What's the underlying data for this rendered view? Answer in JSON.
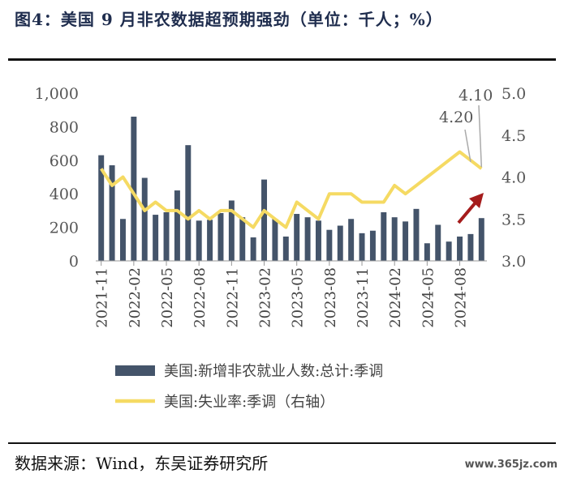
{
  "header": {
    "title": "图4：美国 9 月非农数据超预期强劲（单位：千人；%）"
  },
  "footer": {
    "source": "数据来源：Wind，东吴证券研究所",
    "watermark": "www.365jz.com"
  },
  "colors": {
    "bar": "#44546a",
    "line": "#f5da63",
    "arrow": "#a51c1c",
    "annotation_line": "#aaaaaa"
  },
  "chart_data": {
    "type": "bar+line",
    "left_axis": {
      "min": 0,
      "max": 1000,
      "ticks": [
        "0",
        "200",
        "400",
        "600",
        "800",
        "1,000"
      ],
      "tick_values": [
        0,
        200,
        400,
        600,
        800,
        1000
      ]
    },
    "right_axis": {
      "min": 3.0,
      "max": 5.0,
      "ticks": [
        "3.0",
        "3.5",
        "4.0",
        "4.5",
        "5.0"
      ],
      "tick_values": [
        3.0,
        3.5,
        4.0,
        4.5,
        5.0
      ]
    },
    "x_tick_labels": [
      "2021-11",
      "2022-02",
      "2022-05",
      "2022-08",
      "2022-11",
      "2023-02",
      "2023-05",
      "2023-08",
      "2023-11",
      "2024-02",
      "2024-05",
      "2024-08"
    ],
    "x_tick_indices": [
      0,
      3,
      6,
      9,
      12,
      15,
      18,
      21,
      24,
      27,
      30,
      33
    ],
    "series": [
      {
        "name": "美国:新增非农就业人数:总计:季调",
        "kind": "bar",
        "axis": "left",
        "values": [
          630,
          570,
          250,
          860,
          495,
          275,
          290,
          420,
          690,
          240,
          245,
          285,
          360,
          260,
          140,
          485,
          250,
          145,
          280,
          260,
          240,
          185,
          210,
          250,
          165,
          180,
          290,
          260,
          235,
          310,
          105,
          215,
          115,
          145,
          160,
          255
        ]
      },
      {
        "name": "美国:失业率:季调（右轴）",
        "kind": "line",
        "axis": "right",
        "values": [
          4.1,
          3.9,
          4.0,
          3.8,
          3.6,
          3.7,
          3.6,
          3.6,
          3.5,
          3.6,
          3.5,
          3.6,
          3.6,
          3.5,
          3.4,
          3.6,
          3.5,
          3.4,
          3.7,
          3.6,
          3.5,
          3.8,
          3.8,
          3.8,
          3.7,
          3.7,
          3.7,
          3.9,
          3.8,
          3.9,
          4.0,
          4.1,
          4.2,
          4.3,
          4.2,
          4.1
        ]
      }
    ],
    "annotations": [
      {
        "text": "4.20",
        "point_index": 34
      },
      {
        "text": "4.10",
        "point_index": 35
      }
    ]
  }
}
